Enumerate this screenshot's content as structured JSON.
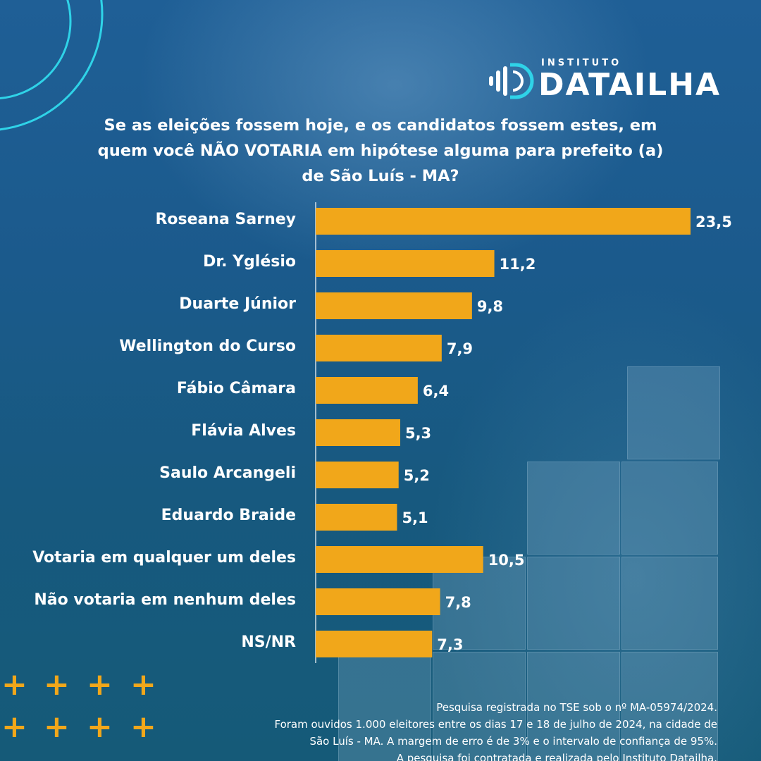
{
  "logo": {
    "small": "INSTITUTO",
    "name": "DATAILHA"
  },
  "title_lines": [
    "Se as eleições fossem hoje, e os candidatos fossem estes, em",
    "quem você NÃO VOTARIA em hipótese alguma para prefeito (a)",
    "de São Luís - MA?"
  ],
  "chart_data": {
    "type": "bar",
    "orientation": "horizontal",
    "categories": [
      "Roseana Sarney",
      "Dr. Yglésio",
      "Duarte Júnior",
      "Wellington do Curso",
      "Fábio Câmara",
      "Flávia Alves",
      "Saulo Arcangeli",
      "Eduardo Braide",
      "Votaria em qualquer um deles",
      "Não votaria em nenhum deles",
      "NS/NR"
    ],
    "values": [
      23.5,
      11.2,
      9.8,
      7.9,
      6.4,
      5.3,
      5.2,
      5.1,
      10.5,
      7.8,
      7.3
    ],
    "value_labels": [
      "23,5",
      "11,2",
      "9,8",
      "7,9",
      "6,4",
      "5,3",
      "5,2",
      "5,1",
      "10,5",
      "7,8",
      "7,3"
    ],
    "bar_color": "#f1a71a",
    "xlim": [
      0,
      23.5
    ],
    "grid": false,
    "legend": "none"
  },
  "footer_lines": [
    "Pesquisa registrada no TSE sob o nº MA-05974/2024.",
    "Foram ouvidos 1.000 eleitores entre os dias 17 e 18 de julho de 2024, na cidade de",
    "São Luís - MA. A margem de erro é de 3% e o intervalo de confiança de 95%.",
    "A pesquisa foi contratada e realizada pelo Instituto Datailha."
  ],
  "colors": {
    "background": "#1b5a8c",
    "accent": "#f1a71a",
    "arc": "#2fd3e8",
    "text": "#ffffff"
  }
}
